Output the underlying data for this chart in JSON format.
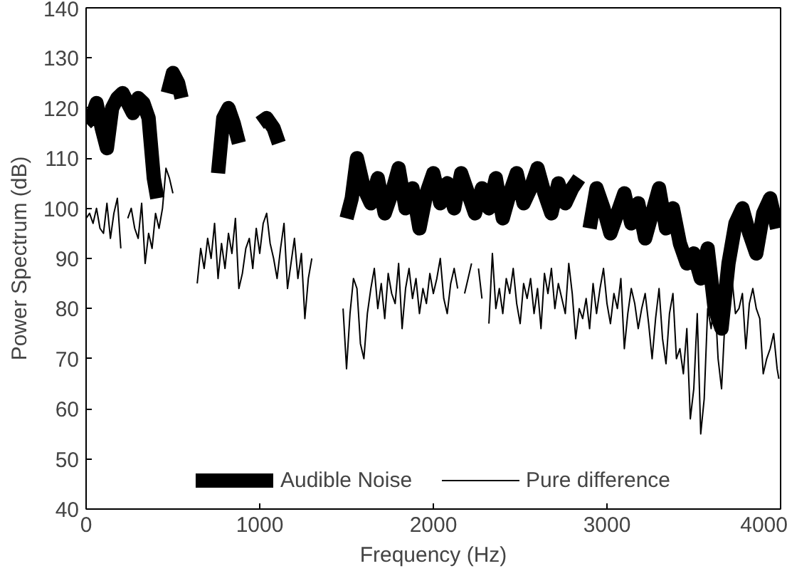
{
  "chart_data": {
    "type": "line",
    "xlabel": "Frequency (Hz)",
    "ylabel": "Power Spectrum (dB)",
    "xlim": [
      0,
      4000
    ],
    "ylim": [
      40,
      140
    ],
    "xticks": [
      0,
      1000,
      2000,
      3000,
      4000
    ],
    "yticks": [
      40,
      50,
      60,
      70,
      80,
      90,
      100,
      110,
      120,
      130,
      140
    ],
    "grid": false,
    "legend": "bottom",
    "marker": "none",
    "line_style": "solid",
    "series": [
      {
        "name": "Audible Noise",
        "color": "#000000",
        "x": [
          0,
          30,
          60,
          90,
          120,
          150,
          180,
          210,
          240,
          270,
          300,
          330,
          360,
          390,
          410,
          440,
          470,
          500,
          530,
          550,
          650,
          760,
          790,
          820,
          850,
          880,
          950,
          1000,
          1040,
          1080,
          1110,
          1300,
          1500,
          1530,
          1560,
          1600,
          1640,
          1680,
          1720,
          1760,
          1800,
          1840,
          1880,
          1920,
          1960,
          2000,
          2040,
          2080,
          2120,
          2160,
          2200,
          2240,
          2280,
          2320,
          2360,
          2400,
          2440,
          2480,
          2520,
          2560,
          2600,
          2640,
          2680,
          2720,
          2760,
          2800,
          2840,
          2870,
          2900,
          2940,
          2980,
          3020,
          3060,
          3100,
          3140,
          3180,
          3220,
          3260,
          3300,
          3340,
          3380,
          3420,
          3460,
          3500,
          3540,
          3580,
          3620,
          3660,
          3700,
          3740,
          3780,
          3820,
          3860,
          3900,
          3940,
          3980
        ],
        "values": [
          117,
          118,
          121,
          116,
          112,
          120,
          122,
          123,
          121,
          119,
          122,
          121,
          118,
          106,
          102,
          null,
          123,
          127,
          125,
          122,
          null,
          107,
          118,
          120,
          117,
          113,
          null,
          117,
          118,
          116,
          113,
          null,
          98,
          102,
          110,
          104,
          101,
          106,
          99,
          103,
          108,
          100,
          104,
          96,
          103,
          107,
          101,
          105,
          100,
          107,
          103,
          99,
          104,
          100,
          106,
          98,
          103,
          107,
          101,
          104,
          108,
          103,
          99,
          105,
          101,
          104,
          106,
          null,
          96,
          104,
          100,
          95,
          99,
          103,
          97,
          101,
          94,
          99,
          104,
          96,
          100,
          93,
          89,
          91,
          86,
          92,
          80,
          76,
          89,
          97,
          100,
          95,
          91,
          99,
          102,
          96
        ]
      },
      {
        "name": "Pure difference",
        "color": "#000000",
        "x": [
          0,
          20,
          40,
          60,
          80,
          100,
          120,
          140,
          160,
          180,
          200,
          220,
          240,
          260,
          280,
          300,
          320,
          340,
          360,
          380,
          400,
          420,
          440,
          460,
          480,
          500,
          520,
          540,
          560,
          640,
          660,
          680,
          700,
          720,
          740,
          760,
          780,
          800,
          820,
          840,
          860,
          880,
          900,
          920,
          940,
          960,
          980,
          1000,
          1020,
          1040,
          1060,
          1080,
          1100,
          1120,
          1140,
          1160,
          1180,
          1200,
          1220,
          1240,
          1260,
          1280,
          1300,
          1460,
          1480,
          1500,
          1520,
          1540,
          1560,
          1580,
          1600,
          1620,
          1640,
          1660,
          1680,
          1700,
          1720,
          1740,
          1760,
          1780,
          1800,
          1820,
          1840,
          1860,
          1880,
          1900,
          1920,
          1940,
          1960,
          1980,
          2000,
          2020,
          2040,
          2060,
          2080,
          2100,
          2120,
          2140,
          2160,
          2180,
          2200,
          2220,
          2240,
          2260,
          2280,
          2300,
          2320,
          2340,
          2360,
          2380,
          2400,
          2420,
          2440,
          2460,
          2480,
          2500,
          2520,
          2540,
          2560,
          2580,
          2600,
          2620,
          2640,
          2660,
          2680,
          2700,
          2720,
          2740,
          2760,
          2780,
          2800,
          2820,
          2840,
          2860,
          2880,
          2900,
          2920,
          2940,
          2960,
          2980,
          3000,
          3020,
          3040,
          3060,
          3080,
          3100,
          3120,
          3140,
          3160,
          3180,
          3200,
          3220,
          3240,
          3260,
          3280,
          3300,
          3320,
          3340,
          3360,
          3380,
          3400,
          3420,
          3440,
          3460,
          3480,
          3500,
          3520,
          3540,
          3560,
          3580,
          3600,
          3620,
          3640,
          3660,
          3680,
          3700,
          3720,
          3740,
          3760,
          3780,
          3800,
          3820,
          3840,
          3860,
          3880,
          3900,
          3920,
          3940,
          3960,
          3980,
          3990
        ],
        "values": [
          98,
          99,
          97,
          100,
          96,
          95,
          101,
          94,
          99,
          102,
          92,
          null,
          98,
          100,
          96,
          94,
          101,
          89,
          95,
          92,
          99,
          96,
          100,
          108,
          106,
          103,
          null,
          null,
          null,
          85,
          92,
          88,
          94,
          90,
          97,
          86,
          93,
          88,
          95,
          91,
          98,
          84,
          87,
          92,
          94,
          88,
          96,
          91,
          97,
          99,
          93,
          90,
          86,
          92,
          97,
          84,
          89,
          94,
          86,
          91,
          78,
          86,
          90,
          null,
          80,
          68,
          79,
          86,
          84,
          73,
          70,
          79,
          84,
          88,
          80,
          85,
          78,
          87,
          83,
          81,
          89,
          76,
          84,
          88,
          82,
          86,
          79,
          84,
          81,
          87,
          83,
          86,
          90,
          82,
          79,
          85,
          88,
          84,
          null,
          83,
          86,
          89,
          null,
          88,
          82,
          null,
          77,
          91,
          80,
          84,
          79,
          86,
          83,
          88,
          81,
          77,
          85,
          82,
          86,
          79,
          84,
          76,
          87,
          83,
          88,
          80,
          85,
          82,
          79,
          89,
          83,
          74,
          80,
          78,
          82,
          76,
          85,
          79,
          84,
          88,
          81,
          77,
          83,
          80,
          86,
          72,
          79,
          84,
          81,
          76,
          80,
          83,
          77,
          70,
          78,
          84,
          74,
          69,
          79,
          83,
          70,
          72,
          67,
          76,
          58,
          64,
          79,
          55,
          62,
          80,
          76,
          83,
          70,
          64,
          78,
          82,
          86,
          79,
          80,
          83,
          72,
          81,
          84,
          80,
          78,
          67,
          70,
          72,
          75,
          68,
          66
        ]
      }
    ]
  }
}
